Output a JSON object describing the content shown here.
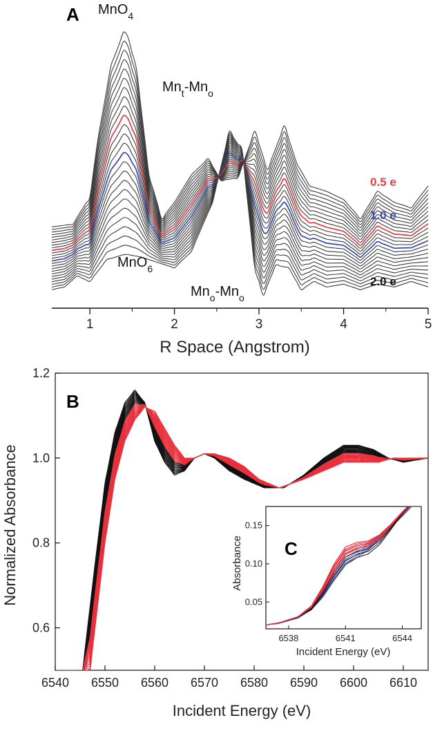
{
  "chart_data": [
    {
      "panel": "A",
      "type": "line",
      "xlabel": "R Space (Angstrom)",
      "xlim": [
        0.55,
        5.0
      ],
      "xticks": [
        "1",
        "2",
        "3",
        "4",
        "5"
      ],
      "annotations": [
        {
          "text": "MnO",
          "sub": "4"
        },
        {
          "text": "Mn",
          "sub": "t",
          "text2": "-Mn",
          "sub2": "o"
        },
        {
          "text": "MnO",
          "sub": "6"
        },
        {
          "text": "Mn",
          "sub": "o",
          "text2": "-Mn",
          "sub2": "o"
        }
      ],
      "series_labels": [
        {
          "name": "0.5 e",
          "color": "#e8404a"
        },
        {
          "name": "1.0 e",
          "color": "#3f4fb0"
        },
        {
          "name": "2.0 e",
          "color": "#111111"
        }
      ],
      "n_traces": 25,
      "highlight": [
        {
          "index": 15,
          "color": "#e8404a"
        },
        {
          "index": 11,
          "color": "#3f4fb0"
        }
      ],
      "top_trace": {
        "x": [
          0.55,
          0.8,
          1.0,
          1.1,
          1.25,
          1.42,
          1.55,
          1.7,
          1.85,
          2.0,
          2.2,
          2.4,
          2.55,
          2.75,
          2.95,
          3.1,
          3.3,
          3.45,
          3.6,
          3.8,
          4.0,
          4.2,
          4.4,
          4.6,
          4.8,
          5.0
        ],
        "y": [
          0.27,
          0.28,
          0.38,
          0.6,
          0.86,
          1.0,
          0.85,
          0.46,
          0.3,
          0.36,
          0.46,
          0.52,
          0.44,
          0.45,
          0.62,
          0.48,
          0.64,
          0.5,
          0.42,
          0.4,
          0.37,
          0.3,
          0.4,
          0.36,
          0.34,
          0.42
        ]
      },
      "bottom_trace": {
        "x": [
          0.55,
          0.7,
          0.85,
          1.0,
          1.2,
          1.42,
          1.6,
          1.8,
          2.0,
          2.2,
          2.45,
          2.65,
          2.8,
          2.95,
          3.05,
          3.2,
          3.35,
          3.5,
          3.65,
          3.8,
          4.0,
          4.2,
          4.4,
          4.6,
          4.8,
          5.0
        ],
        "y": [
          0.04,
          0.05,
          0.09,
          0.07,
          0.15,
          0.17,
          0.16,
          0.14,
          0.12,
          0.18,
          0.36,
          0.62,
          0.55,
          0.12,
          0.02,
          0.13,
          0.12,
          0.04,
          0.07,
          0.05,
          0.06,
          0.04,
          0.06,
          0.05,
          0.07,
          0.05
        ]
      }
    },
    {
      "panel": "B",
      "type": "line",
      "xlabel": "Incident Energy (eV)",
      "ylabel": "Normalized Absorbance",
      "xlim": [
        6540,
        6615
      ],
      "ylim": [
        0.5,
        1.2
      ],
      "xticks": [
        "6540",
        "6550",
        "6560",
        "6570",
        "6580",
        "6590",
        "6600",
        "6610"
      ],
      "yticks": [
        "0.6",
        "0.8",
        "1.0",
        "1.2"
      ],
      "n_traces": 24,
      "series": [
        {
          "name": "",
          "color": "#111111",
          "x": [
            6545.5,
            6548,
            6550,
            6552,
            6554,
            6556,
            6558,
            6560,
            6562,
            6564,
            6566,
            6568,
            6570,
            6572,
            6575,
            6578,
            6582,
            6586,
            6590,
            6594,
            6598,
            6601,
            6604,
            6607,
            6610,
            6615
          ],
          "y": [
            0.5,
            0.75,
            0.94,
            1.06,
            1.13,
            1.16,
            1.13,
            1.04,
            0.99,
            0.96,
            0.97,
            1.0,
            1.01,
            1.0,
            0.97,
            0.95,
            0.93,
            0.93,
            0.96,
            1.0,
            1.03,
            1.03,
            1.02,
            1.0,
            0.99,
            1.0
          ]
        },
        {
          "name": "",
          "color": "#e8303c",
          "x": [
            6547,
            6550,
            6552,
            6554,
            6556,
            6558,
            6560,
            6562,
            6564,
            6566,
            6568,
            6570,
            6572,
            6575,
            6578,
            6581,
            6585,
            6590,
            6594,
            6598,
            6602,
            6605,
            6608,
            6611,
            6615
          ],
          "y": [
            0.5,
            0.8,
            0.95,
            1.04,
            1.09,
            1.12,
            1.11,
            1.07,
            1.03,
            1.0,
            1.0,
            1.01,
            1.01,
            1.0,
            0.98,
            0.95,
            0.93,
            0.95,
            0.97,
            0.99,
            0.99,
            0.99,
            1.0,
            1.0,
            1.0
          ]
        }
      ]
    },
    {
      "panel": "C",
      "type": "line",
      "xlabel": "Incident Energy (eV)",
      "ylabel": "Absorbance",
      "xlim": [
        6536.8,
        6545.0
      ],
      "ylim": [
        0.015,
        0.175
      ],
      "xticks": [
        "6538",
        "6541",
        "6544"
      ],
      "yticks": [
        "0.05",
        "0.10",
        "0.15"
      ],
      "series": [
        {
          "name": "",
          "color": "#111111",
          "x": [
            6536.8,
            6537.5,
            6538.5,
            6539.2,
            6539.8,
            6540.4,
            6541.0,
            6541.6,
            6542.2,
            6542.8,
            6543.4,
            6544.0,
            6544.5
          ],
          "y": [
            0.02,
            0.023,
            0.03,
            0.04,
            0.058,
            0.08,
            0.1,
            0.108,
            0.113,
            0.125,
            0.145,
            0.165,
            0.18
          ]
        },
        {
          "name": "",
          "color": "#e8303c",
          "x": [
            6536.8,
            6537.5,
            6538.5,
            6539.2,
            6539.8,
            6540.4,
            6541.0,
            6541.6,
            6542.2,
            6542.8,
            6543.4,
            6544.0,
            6544.5
          ],
          "y": [
            0.02,
            0.023,
            0.031,
            0.045,
            0.07,
            0.1,
            0.122,
            0.128,
            0.13,
            0.138,
            0.152,
            0.168,
            0.18
          ]
        },
        {
          "name": "",
          "color": "#5a62c0",
          "x": [
            6536.8,
            6537.5,
            6538.5,
            6539.2,
            6539.8,
            6540.4,
            6541.0,
            6541.6,
            6542.2,
            6542.8,
            6543.4,
            6544.0,
            6544.5
          ],
          "y": [
            0.02,
            0.022,
            0.029,
            0.04,
            0.056,
            0.078,
            0.098,
            0.108,
            0.118,
            0.132,
            0.148,
            0.162,
            0.175
          ]
        }
      ]
    }
  ]
}
